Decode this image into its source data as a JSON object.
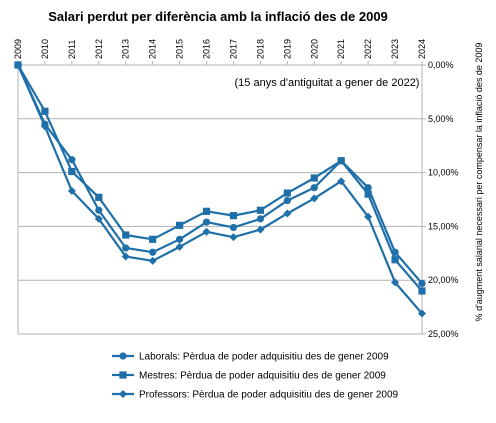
{
  "chart_data": {
    "type": "line",
    "title": "Salari perdut per diferència amb la inflació des de 2009",
    "subtitle": "(15 anys d'antiguitat a gener de 2022)",
    "xlabel": "",
    "ylabel": "% d'augment salarial necessari per compensar la inflació des de 2009",
    "x": [
      "2009",
      "2010",
      "2011",
      "2012",
      "2013",
      "2014",
      "2015",
      "2016",
      "2017",
      "2018",
      "2019",
      "2020",
      "2021",
      "2022",
      "2023",
      "2024"
    ],
    "y_ticks": [
      "0,00%",
      "5,00%",
      "10,00%",
      "15,00%",
      "20,00%",
      "25,00%"
    ],
    "ylim": [
      0,
      25
    ],
    "y_axis_side": "right",
    "y_axis_inverted": true,
    "grid": true,
    "legend_position": "bottom",
    "line_color": "#1f6fa8",
    "series": [
      {
        "name": "Laborals: Pèrdua de poder adquisitiu des de gener 2009",
        "marker": "circle",
        "values": [
          0,
          5.5,
          8.8,
          13.5,
          17.0,
          17.4,
          16.2,
          14.6,
          15.1,
          14.3,
          12.6,
          11.4,
          8.9,
          11.4,
          17.4,
          20.3
        ]
      },
      {
        "name": "Mestres: Pèrdua de poder adquisitiu des de gener 2009",
        "marker": "square",
        "values": [
          0,
          4.3,
          9.9,
          12.3,
          15.8,
          16.2,
          14.9,
          13.6,
          14.0,
          13.5,
          11.9,
          10.5,
          8.9,
          12.0,
          18.1,
          21.0
        ]
      },
      {
        "name": "Professors: Pèrdua de poder adquisitiu des de gener 2009",
        "marker": "diamond",
        "values": [
          0,
          5.7,
          11.7,
          14.3,
          17.8,
          18.2,
          16.9,
          15.5,
          16.0,
          15.3,
          13.8,
          12.4,
          10.8,
          14.1,
          20.2,
          23.1
        ]
      }
    ]
  }
}
